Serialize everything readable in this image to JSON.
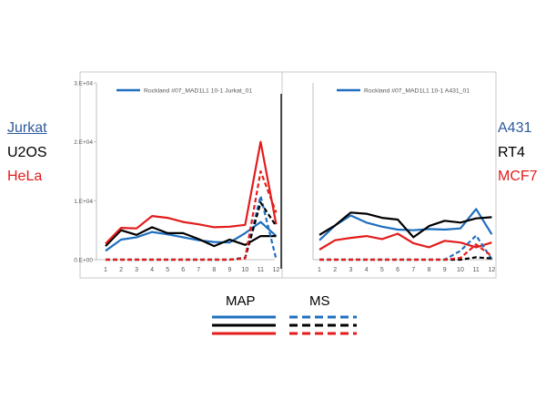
{
  "left_labels": [
    {
      "text": "Jurkat",
      "color": "#2e5a9c",
      "underline": true
    },
    {
      "text": "U2OS",
      "color": "#000000",
      "underline": false
    },
    {
      "text": "HeLa",
      "color": "#e31c1c",
      "underline": false
    }
  ],
  "right_labels": [
    {
      "text": "A431",
      "color": "#2e5a9c"
    },
    {
      "text": "RT4",
      "color": "#000000"
    },
    {
      "text": "MCF7",
      "color": "#e31c1c"
    }
  ],
  "legend": {
    "solid_label": "MAP",
    "dashed_label": "MS",
    "colors": [
      "#1f6fbf",
      "#000000",
      "#e31c1c"
    ]
  },
  "chart_data": [
    {
      "type": "line",
      "legend_entry": "Rockland #07_MAD1L1 10-1 Jurkat_01",
      "x": [
        1,
        2,
        3,
        4,
        5,
        6,
        7,
        8,
        9,
        10,
        11,
        12
      ],
      "ylim": [
        0,
        30000
      ],
      "yticks": [
        "0.E+00",
        "1.E+04",
        "2.E+04",
        "3.E+04"
      ],
      "yticks_values": [
        0,
        10000,
        20000,
        30000
      ],
      "series": [
        {
          "kind": "MAP",
          "color": "#1f6fbf",
          "dashed": false,
          "values": [
            1500,
            3400,
            3800,
            4700,
            4300,
            3800,
            3300,
            3000,
            2900,
            4500,
            6400,
            4000
          ]
        },
        {
          "kind": "MAP",
          "color": "#000000",
          "dashed": false,
          "values": [
            2300,
            5000,
            4200,
            5500,
            4500,
            4500,
            3500,
            2300,
            3400,
            2500,
            4000,
            4000
          ]
        },
        {
          "kind": "MAP",
          "color": "#e31c1c",
          "dashed": false,
          "values": [
            2700,
            5400,
            5300,
            7400,
            7100,
            6400,
            6000,
            5500,
            5600,
            5900,
            20000,
            6000
          ]
        },
        {
          "kind": "MS",
          "color": "#1f6fbf",
          "dashed": true,
          "values": [
            0,
            0,
            0,
            0,
            0,
            0,
            0,
            0,
            0,
            300,
            10800,
            100
          ]
        },
        {
          "kind": "MS",
          "color": "#000000",
          "dashed": true,
          "values": [
            0,
            0,
            0,
            0,
            0,
            0,
            0,
            0,
            0,
            300,
            9700,
            5700
          ]
        },
        {
          "kind": "MS",
          "color": "#e31c1c",
          "dashed": true,
          "values": [
            0,
            0,
            0,
            0,
            0,
            0,
            0,
            0,
            0,
            200,
            15000,
            8000
          ]
        }
      ]
    },
    {
      "type": "line",
      "legend_entry": "Rockland #07_MAD1L1 10-1 A431_01",
      "x": [
        1,
        2,
        3,
        4,
        5,
        6,
        7,
        8,
        9,
        10,
        11,
        12
      ],
      "ylim": [
        0,
        30000
      ],
      "series": [
        {
          "kind": "MAP",
          "color": "#1f6fbf",
          "dashed": false,
          "values": [
            3300,
            5800,
            7500,
            6300,
            5600,
            5100,
            5000,
            5200,
            5100,
            5300,
            8600,
            4300
          ]
        },
        {
          "kind": "MAP",
          "color": "#000000",
          "dashed": false,
          "values": [
            4200,
            5800,
            8000,
            7800,
            7100,
            6800,
            3800,
            5700,
            6600,
            6300,
            7000,
            7200
          ]
        },
        {
          "kind": "MAP",
          "color": "#e31c1c",
          "dashed": false,
          "values": [
            1700,
            3300,
            3700,
            4000,
            3500,
            4400,
            2800,
            2100,
            3200,
            2900,
            2100,
            2900
          ]
        },
        {
          "kind": "MS",
          "color": "#1f6fbf",
          "dashed": true,
          "values": [
            0,
            0,
            0,
            0,
            0,
            0,
            0,
            0,
            0,
            1500,
            4100,
            100
          ]
        },
        {
          "kind": "MS",
          "color": "#000000",
          "dashed": true,
          "values": [
            0,
            0,
            0,
            0,
            0,
            0,
            0,
            0,
            0,
            0,
            400,
            200
          ]
        },
        {
          "kind": "MS",
          "color": "#e31c1c",
          "dashed": true,
          "values": [
            0,
            0,
            0,
            0,
            0,
            0,
            0,
            0,
            0,
            300,
            2600,
            600
          ]
        }
      ]
    }
  ]
}
